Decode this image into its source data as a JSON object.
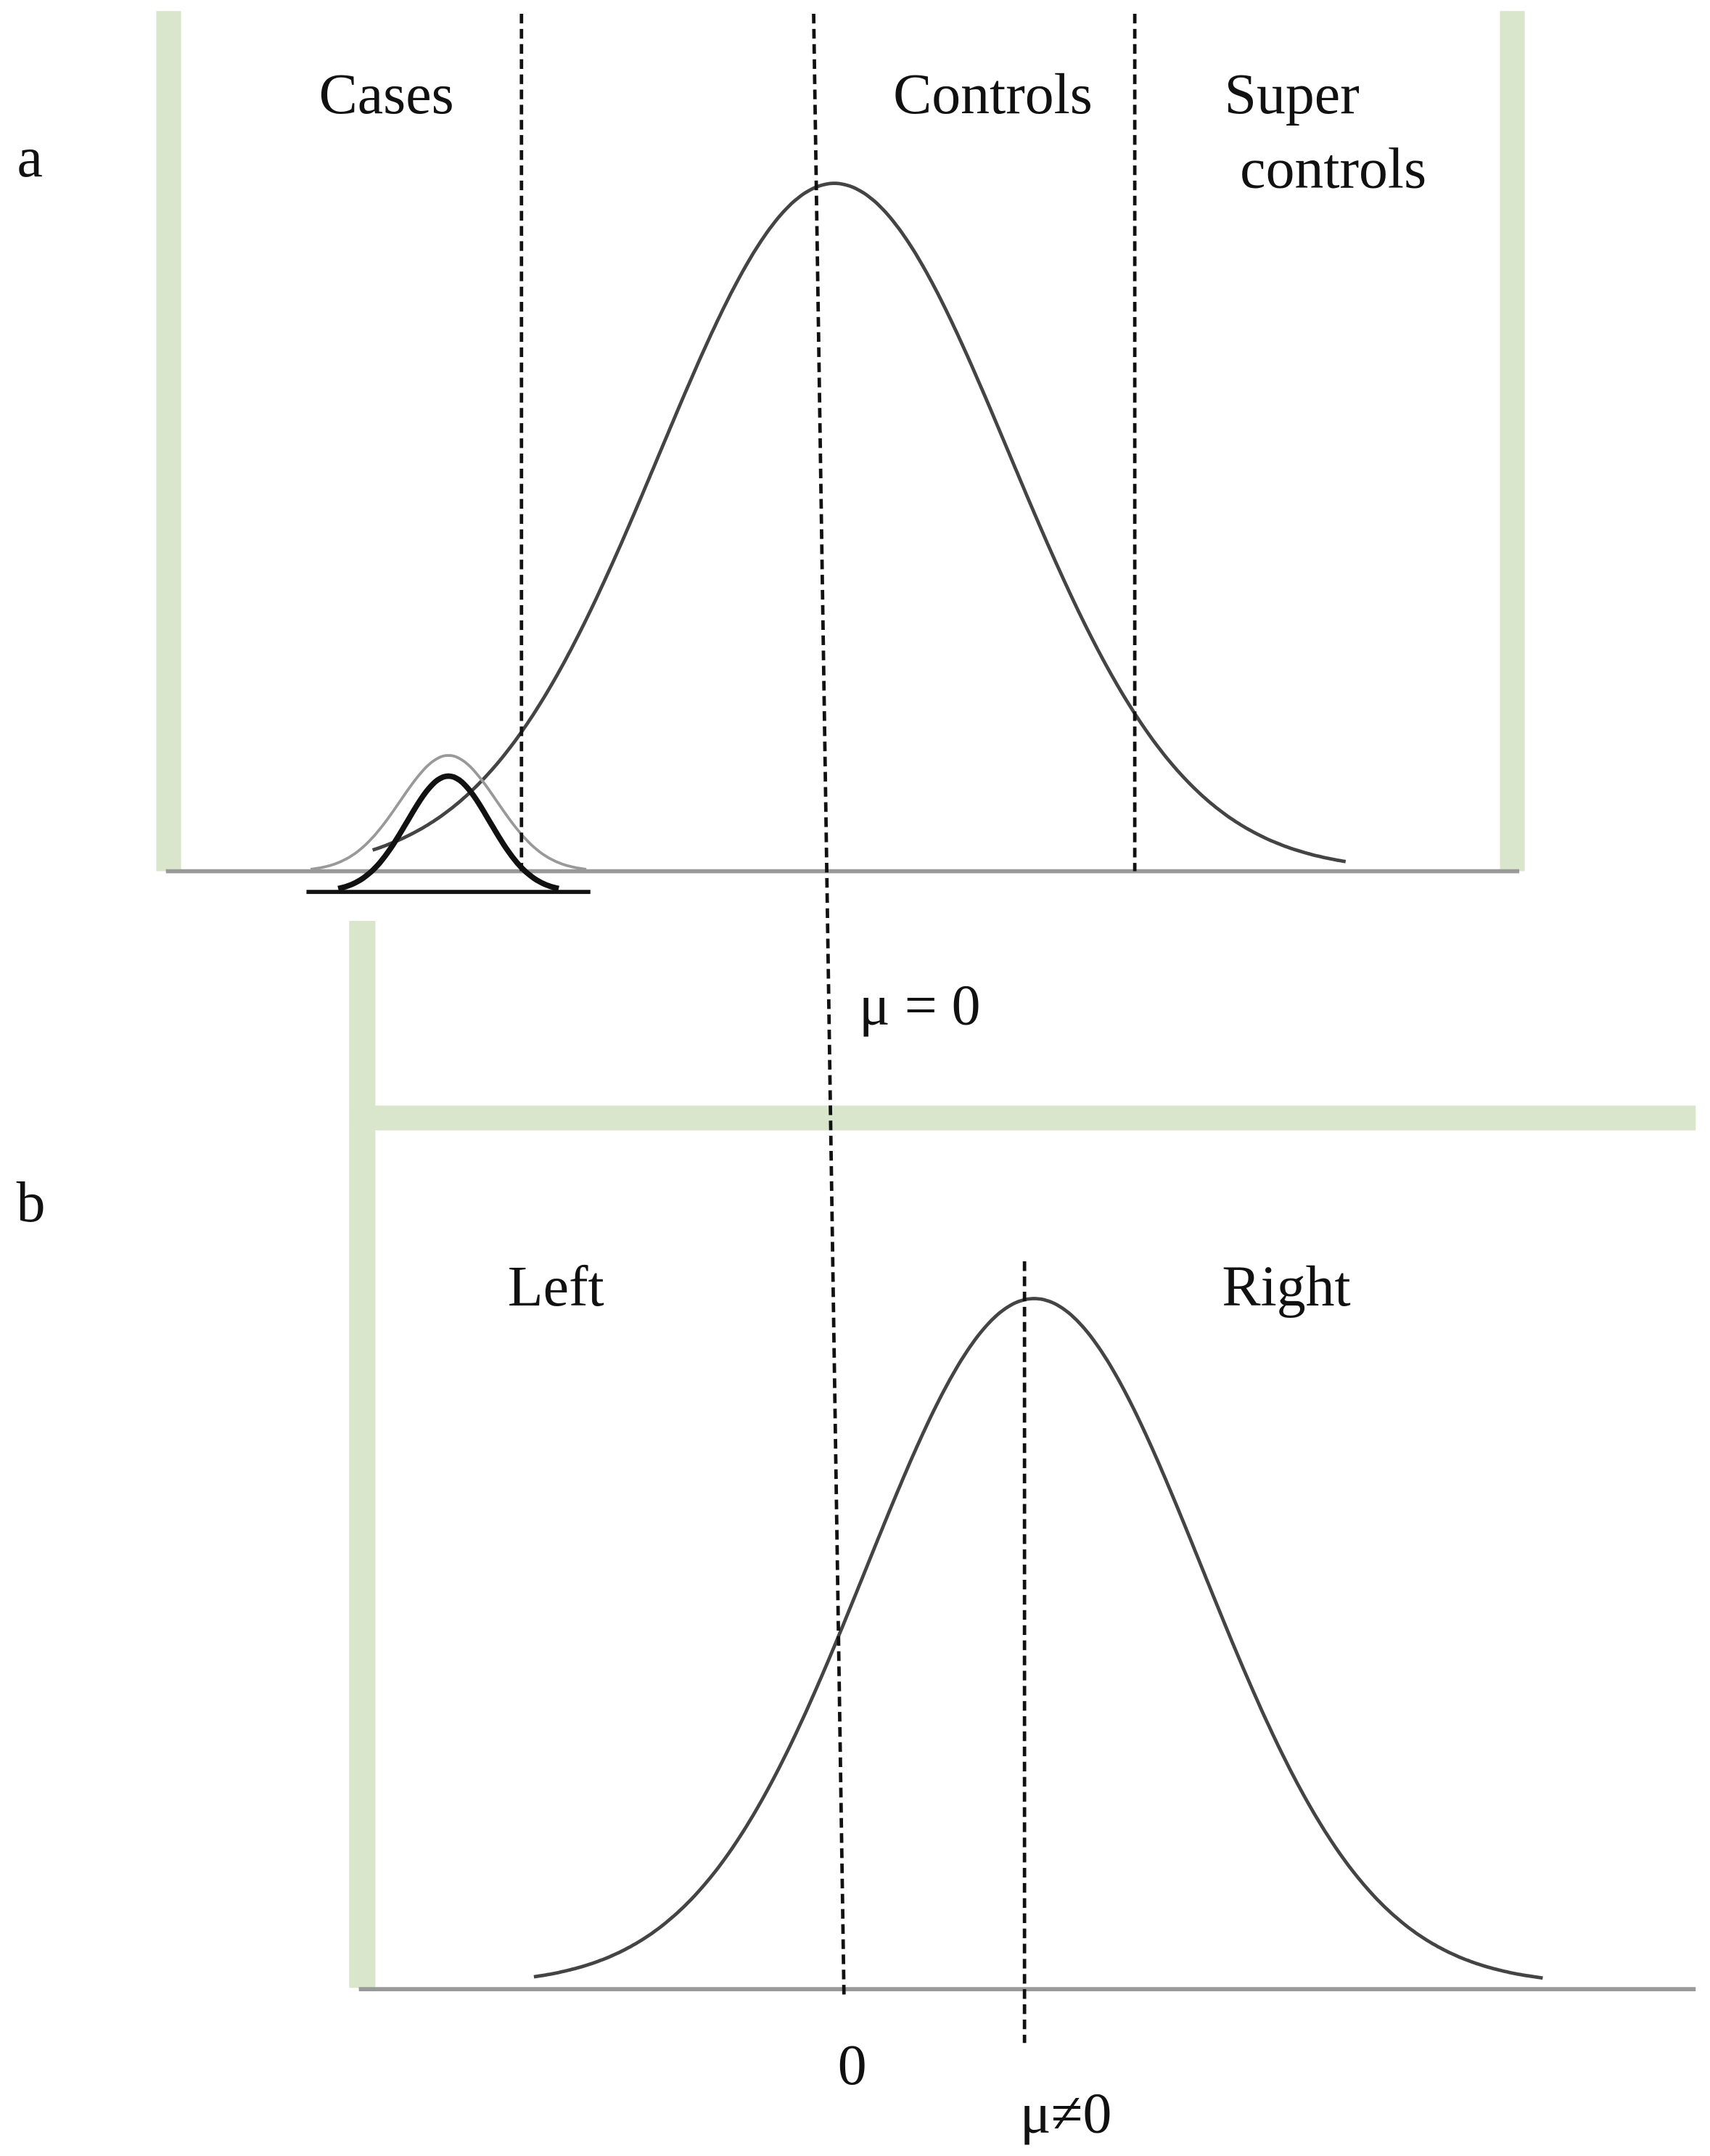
{
  "panel_a": {
    "label": "a",
    "regions": [
      "Cases",
      "Controls",
      "Super",
      "controls"
    ],
    "mean_label": "μ = 0"
  },
  "panel_b": {
    "label": "b",
    "regions": [
      "Left",
      "Right"
    ],
    "zero_label": "0",
    "mean_label": "μ≠0"
  }
}
